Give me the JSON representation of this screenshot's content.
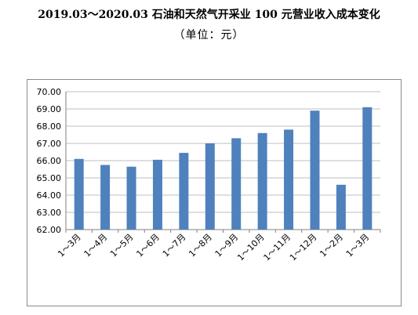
{
  "chart_data": {
    "type": "bar",
    "title": "2019.03～2020.03 石油和天然气开采业 100 元营业收入成本变化",
    "subtitle": "（单位：元）",
    "categories": [
      "1～3月",
      "1～4月",
      "1～5月",
      "1～6月",
      "1～7月",
      "1～8月",
      "1～9月",
      "1～10月",
      "1～11月",
      "1～12月",
      "1～2月",
      "1～3月"
    ],
    "values": [
      66.1,
      65.75,
      65.65,
      66.05,
      66.45,
      67.0,
      67.3,
      67.6,
      67.8,
      68.9,
      64.6,
      69.1
    ],
    "ylim": [
      62,
      70
    ],
    "yticks": [
      "62.00",
      "63.00",
      "64.00",
      "65.00",
      "66.00",
      "67.00",
      "68.00",
      "69.00",
      "70.00"
    ],
    "grid": true,
    "bar_color": "#4F81BD",
    "grid_color": "#bfbfbf"
  }
}
